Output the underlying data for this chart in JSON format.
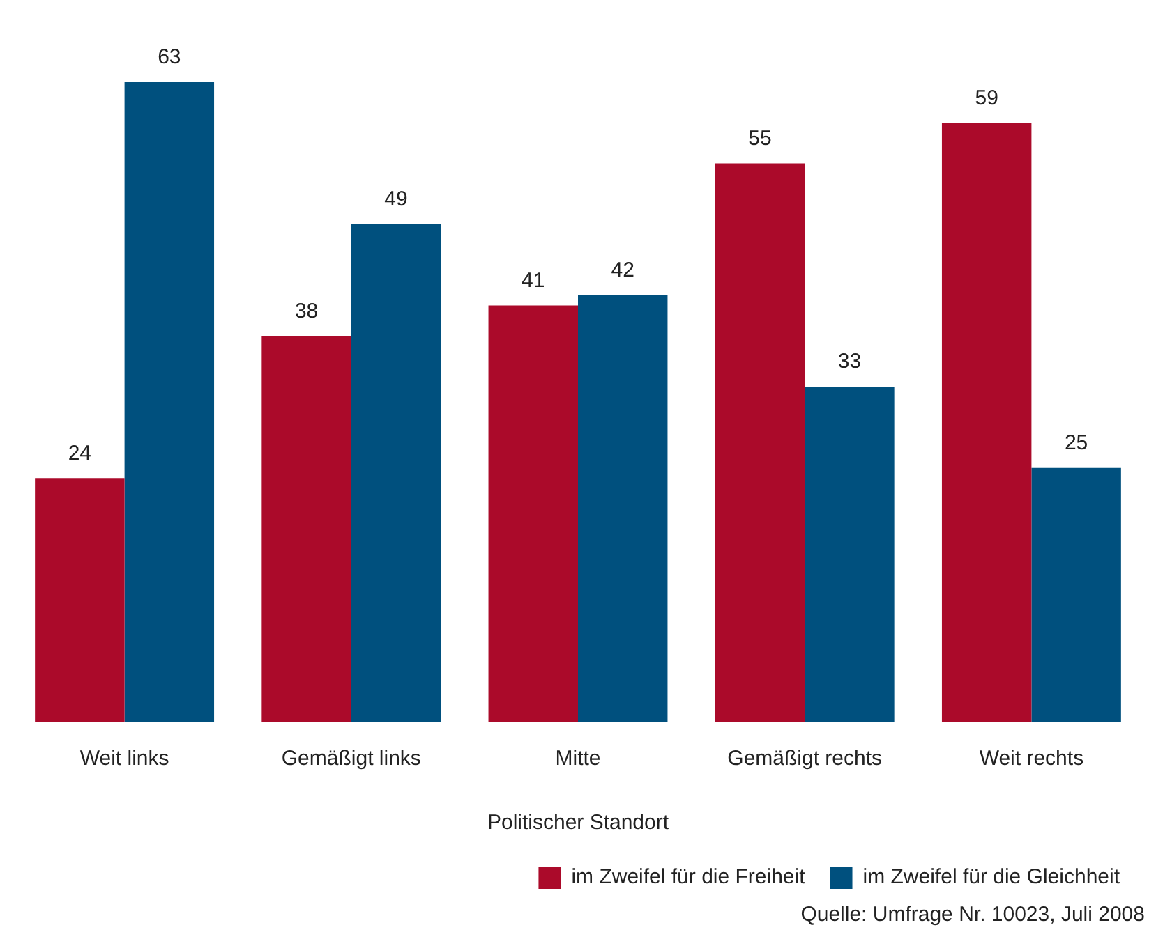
{
  "chart_data": {
    "type": "bar",
    "xlabel": "Politischer Standort",
    "categories": [
      "Weit links",
      "Gemäßigt links",
      "Mitte",
      "Gemäßigt rechts",
      "Weit rechts"
    ],
    "series": [
      {
        "name": "im Zweifel für die Freiheit",
        "color": "#ab0a2a",
        "values": [
          24,
          38,
          41,
          55,
          59
        ]
      },
      {
        "name": "im Zweifel für die Gleichheit",
        "color": "#00507e",
        "values": [
          63,
          49,
          42,
          33,
          25
        ]
      }
    ],
    "data_labels": true,
    "legend": "bottom",
    "grid": false,
    "tick_labels": "x",
    "annotations": [
      "Quelle: Umfrage Nr. 10023, Juli 2008"
    ]
  }
}
